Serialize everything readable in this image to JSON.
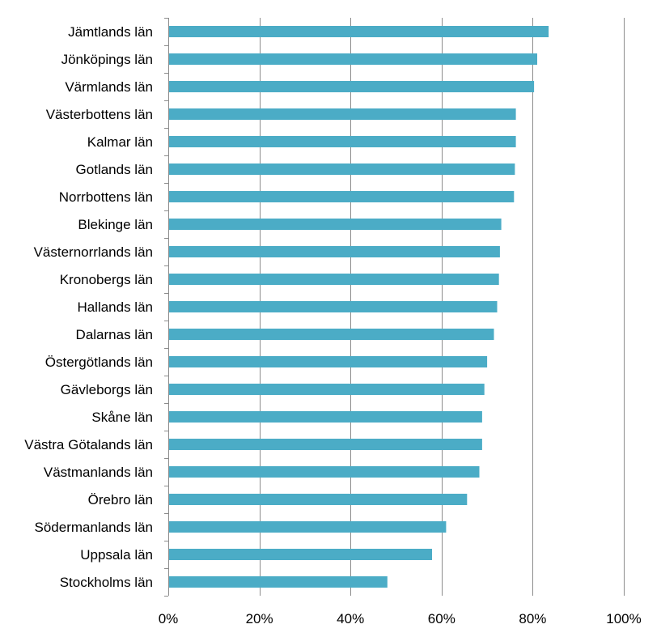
{
  "chart_data": {
    "type": "bar",
    "orientation": "horizontal",
    "categories": [
      "Jämtlands län",
      "Jönköpings län",
      "Värmlands län",
      "Västerbottens län",
      "Kalmar län",
      "Gotlands län",
      "Norrbottens län",
      "Blekinge län",
      "Västernorrlands län",
      "Kronobergs län",
      "Hallands län",
      "Dalarnas län",
      "Östergötlands län",
      "Gävleborgs län",
      "Skåne län",
      "Västra Götalands län",
      "Västmanlands län",
      "Örebro län",
      "Södermanlands län",
      "Uppsala län",
      "Stockholms län"
    ],
    "values": [
      83.5,
      81,
      80.3,
      76.3,
      76.3,
      76.1,
      75.9,
      73.1,
      72.8,
      72.6,
      72.2,
      71.5,
      70,
      69.4,
      68.9,
      68.9,
      68.3,
      65.6,
      61,
      57.9,
      48.1
    ],
    "xlim": [
      0,
      100
    ],
    "x_ticks": [
      "0%",
      "20%",
      "40%",
      "60%",
      "80%",
      "100%"
    ],
    "x_tick_values": [
      0,
      20,
      40,
      60,
      80,
      100
    ],
    "grid": "vertical",
    "bar_color": "#4bacc6",
    "title": "",
    "xlabel": "",
    "ylabel": ""
  }
}
